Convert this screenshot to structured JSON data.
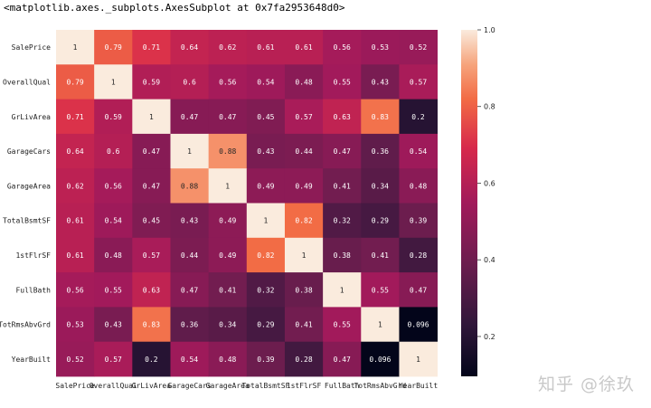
{
  "repr_text": "<matplotlib.axes._subplots.AxesSubplot at 0x7fa2953648d0>",
  "watermark": "知乎 @徐玖",
  "chart_data": {
    "type": "heatmap",
    "colormap": "rocket",
    "annotated": true,
    "categories": [
      "SalePrice",
      "OverallQual",
      "GrLivArea",
      "GarageCars",
      "GarageArea",
      "TotalBsmtSF",
      "1stFlrSF",
      "FullBath",
      "TotRmsAbvGrd",
      "YearBuilt"
    ],
    "matrix": [
      [
        1,
        0.79,
        0.71,
        0.64,
        0.62,
        0.61,
        0.61,
        0.56,
        0.53,
        0.52
      ],
      [
        0.79,
        1,
        0.59,
        0.6,
        0.56,
        0.54,
        0.48,
        0.55,
        0.43,
        0.57
      ],
      [
        0.71,
        0.59,
        1,
        0.47,
        0.47,
        0.45,
        0.57,
        0.63,
        0.83,
        0.2
      ],
      [
        0.64,
        0.6,
        0.47,
        1,
        0.88,
        0.43,
        0.44,
        0.47,
        0.36,
        0.54
      ],
      [
        0.62,
        0.56,
        0.47,
        0.88,
        1,
        0.49,
        0.49,
        0.41,
        0.34,
        0.48
      ],
      [
        0.61,
        0.54,
        0.45,
        0.43,
        0.49,
        1,
        0.82,
        0.32,
        0.29,
        0.39
      ],
      [
        0.61,
        0.48,
        0.57,
        0.44,
        0.49,
        0.82,
        1,
        0.38,
        0.41,
        0.28
      ],
      [
        0.56,
        0.55,
        0.63,
        0.47,
        0.41,
        0.32,
        0.38,
        1,
        0.55,
        0.47
      ],
      [
        0.53,
        0.43,
        0.83,
        0.36,
        0.34,
        0.29,
        0.41,
        0.55,
        1,
        0.096
      ],
      [
        0.52,
        0.57,
        0.2,
        0.54,
        0.48,
        0.39,
        0.28,
        0.47,
        0.096,
        1
      ]
    ],
    "colorbar": {
      "range": [
        0.096,
        1.0
      ],
      "ticks": [
        0.2,
        0.4,
        0.6,
        0.8,
        1.0
      ],
      "tick_labels": [
        "0.2",
        "0.4",
        "0.6",
        "0.8",
        "1.0"
      ]
    }
  }
}
